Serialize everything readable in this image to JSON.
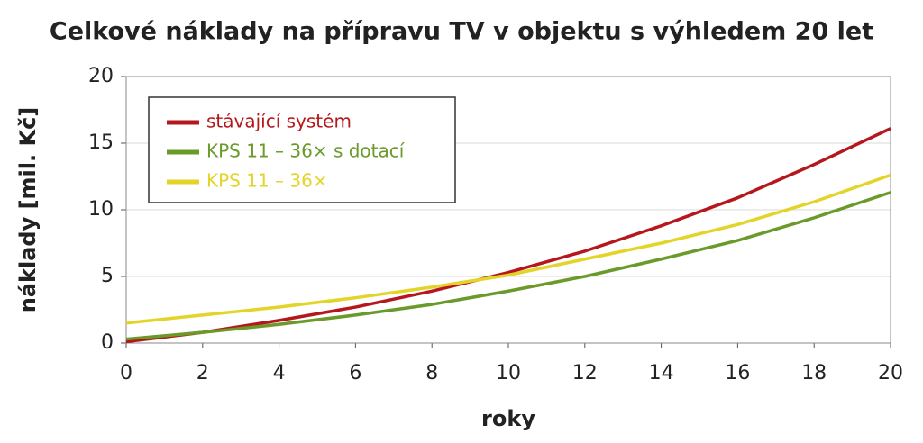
{
  "chart_data": {
    "type": "line",
    "title": "Celkové náklady na přípravu TV v objektu s výhledem 20 let",
    "x_label": "roky",
    "y_label": "náklady [mil. Kč]",
    "x": [
      0,
      2,
      4,
      6,
      8,
      10,
      12,
      14,
      16,
      18,
      20
    ],
    "series": [
      {
        "name": "stávající systém",
        "color": "#b5171c",
        "values": [
          0.1,
          0.8,
          1.7,
          2.7,
          3.9,
          5.3,
          6.9,
          8.8,
          10.9,
          13.4,
          16.1
        ]
      },
      {
        "name": "KPS 11 – 36× s dotací",
        "color": "#6a9a2a",
        "values": [
          0.3,
          0.8,
          1.4,
          2.1,
          2.9,
          3.9,
          5.0,
          6.3,
          7.7,
          9.4,
          11.3
        ]
      },
      {
        "name": "KPS 11 – 36×",
        "color": "#e3d42a",
        "values": [
          1.5,
          2.1,
          2.7,
          3.4,
          4.2,
          5.1,
          6.3,
          7.5,
          8.9,
          10.6,
          12.6
        ]
      }
    ],
    "xlim": [
      0,
      20
    ],
    "xticks": [
      0,
      2,
      4,
      6,
      8,
      10,
      12,
      14,
      16,
      18,
      20
    ],
    "ylim": [
      0,
      20
    ],
    "yticks": [
      0,
      5,
      10,
      15,
      20
    ],
    "grid": true,
    "legend": "upper left"
  }
}
